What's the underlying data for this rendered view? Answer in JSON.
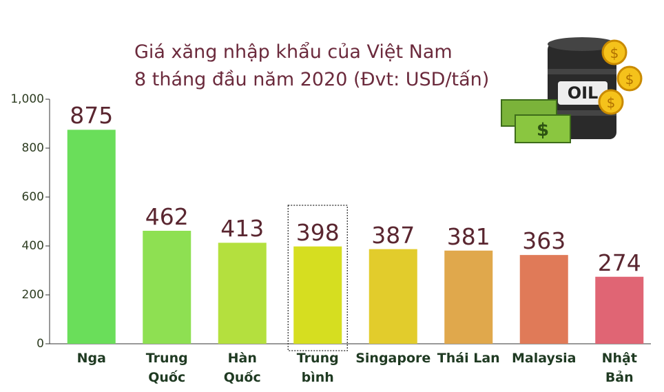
{
  "chart_data": {
    "type": "bar",
    "title": "Giá xăng nhập khẩu của Việt Nam\n8 tháng đầu năm 2020 (Đvt: USD/tấn)",
    "categories": [
      "Nga",
      "Trung\nQuốc",
      "Hàn\nQuốc",
      "Trung\nbình",
      "Singapore",
      "Thái Lan",
      "Malaysia",
      "Nhật\nBản"
    ],
    "values": [
      875,
      462,
      413,
      398,
      387,
      381,
      363,
      274
    ],
    "colors": [
      "#6ade5a",
      "#8ee052",
      "#b4e03e",
      "#d6de20",
      "#e2cc2c",
      "#e0a84c",
      "#e07a58",
      "#e06574"
    ],
    "highlighted": 3,
    "ylim": [
      0,
      1000
    ],
    "yticks": [
      0,
      200,
      400,
      600,
      800,
      {
        "value": 1000,
        "label": "1,000"
      }
    ],
    "grid": false,
    "illustration_label": "OIL"
  }
}
